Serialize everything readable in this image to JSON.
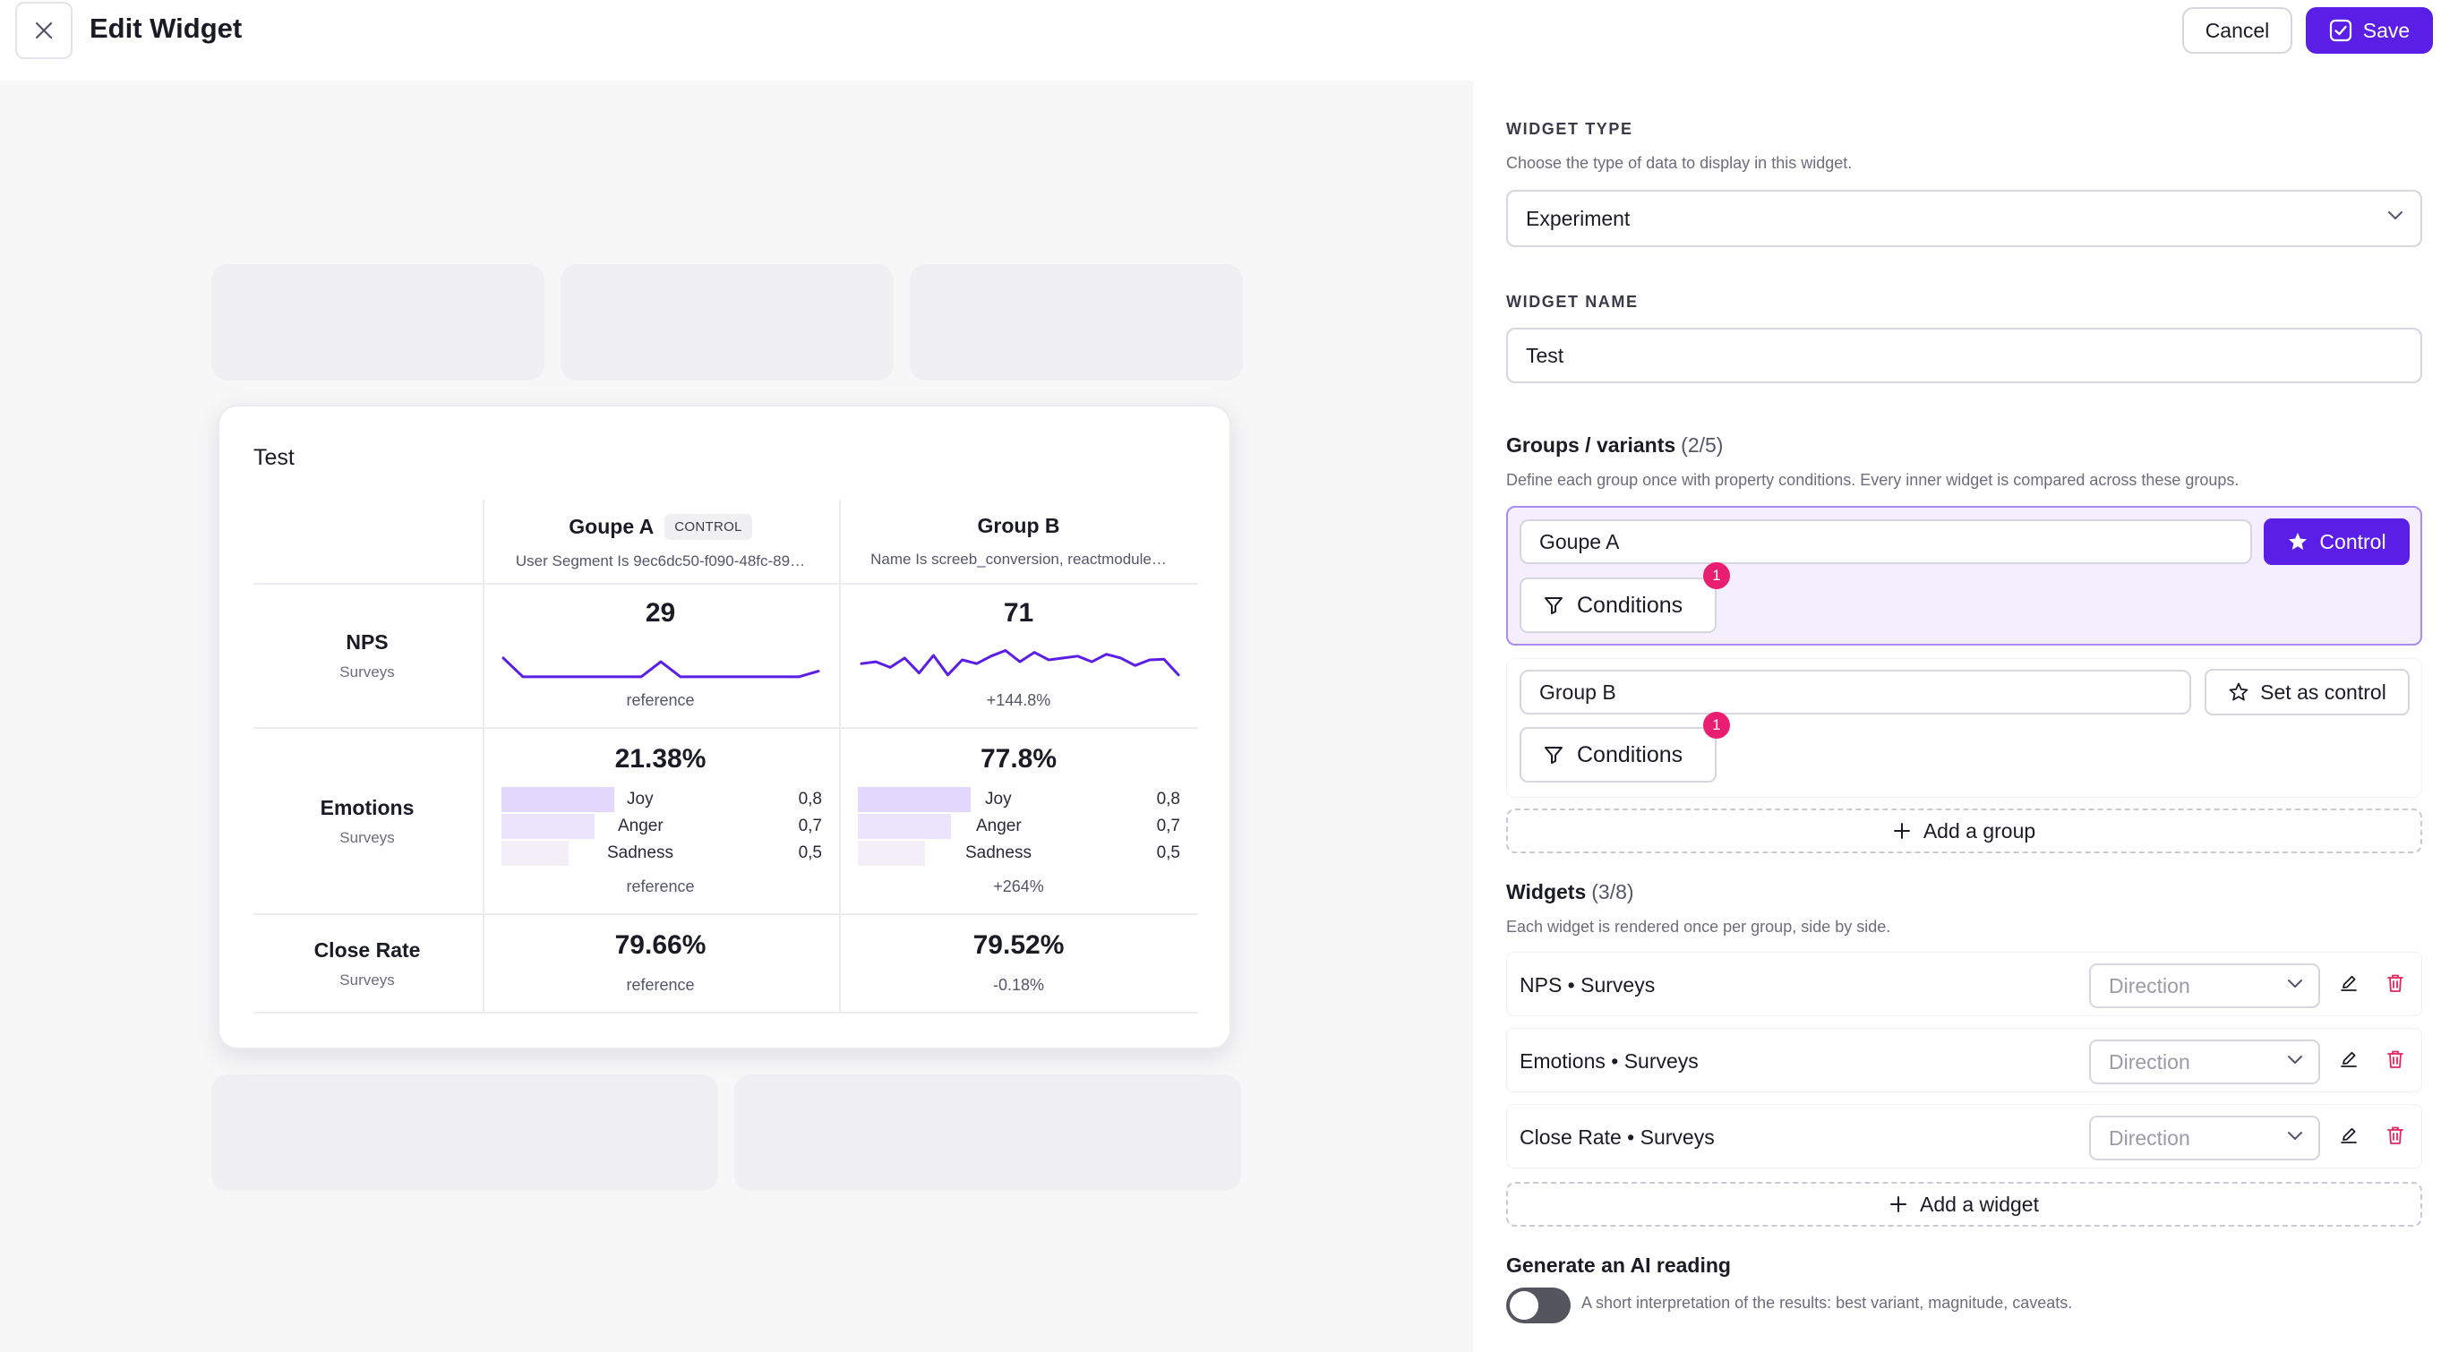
{
  "header": {
    "title": "Edit Widget",
    "cancel_label": "Cancel",
    "save_label": "Save"
  },
  "preview": {
    "card_title": "Test",
    "groups": [
      {
        "name": "Goupe A",
        "badge": "CONTROL",
        "condition": "User Segment Is 9ec6dc50-f090-48fc-89…"
      },
      {
        "name": "Group B",
        "badge": "",
        "condition": "Name Is screeb_conversion, reactmodule…"
      }
    ],
    "rows": [
      {
        "title": "NPS",
        "subtitle": "Surveys",
        "cells": [
          {
            "value": "29",
            "foot": "reference",
            "sparkline": [
              0.55,
              0.05,
              0.05,
              0.05,
              0.05,
              0.05,
              0.05,
              0.05,
              0.45,
              0.05,
              0.05,
              0.05,
              0.05,
              0.05,
              0.05,
              0.05,
              0.2
            ]
          },
          {
            "value": "71",
            "foot": "+144.8%",
            "sparkline": [
              0.4,
              0.45,
              0.3,
              0.55,
              0.15,
              0.62,
              0.1,
              0.5,
              0.4,
              0.6,
              0.75,
              0.45,
              0.7,
              0.5,
              0.55,
              0.6,
              0.45,
              0.65,
              0.55,
              0.35,
              0.5,
              0.52,
              0.1
            ]
          }
        ]
      },
      {
        "title": "Emotions",
        "subtitle": "Surveys",
        "cells": [
          {
            "value": "21.38%",
            "foot": "reference",
            "emotions": [
              {
                "label": "Joy",
                "value": "0,8"
              },
              {
                "label": "Anger",
                "value": "0,7"
              },
              {
                "label": "Sadness",
                "value": "0,5"
              }
            ]
          },
          {
            "value": "77.8%",
            "foot": "+264%",
            "emotions": [
              {
                "label": "Joy",
                "value": "0,8"
              },
              {
                "label": "Anger",
                "value": "0,7"
              },
              {
                "label": "Sadness",
                "value": "0,5"
              }
            ]
          }
        ]
      },
      {
        "title": "Close Rate",
        "subtitle": "Surveys",
        "cells": [
          {
            "value": "79.66%",
            "foot": "reference"
          },
          {
            "value": "79.52%",
            "foot": "-0.18%"
          }
        ]
      }
    ]
  },
  "panel": {
    "widget_type": {
      "label": "WIDGET TYPE",
      "description": "Choose the type of data to display in this widget.",
      "value": "Experiment"
    },
    "widget_name": {
      "label": "WIDGET NAME",
      "value": "Test"
    },
    "groups": {
      "title": "Groups / variants",
      "count": "(2/5)",
      "description": "Define each group once with property conditions. Every inner widget is compared across these groups.",
      "items": [
        {
          "name": "Goupe A",
          "action_label": "Control",
          "conditions_label": "Conditions",
          "conditions_count": "1"
        },
        {
          "name": "Group B",
          "action_label": "Set as control",
          "conditions_label": "Conditions",
          "conditions_count": "1"
        }
      ],
      "add_label": "Add a group"
    },
    "widgets": {
      "title": "Widgets",
      "count": "(3/8)",
      "description": "Each widget is rendered once per group, side by side.",
      "items": [
        {
          "label": "NPS • Surveys",
          "direction_placeholder": "Direction"
        },
        {
          "label": "Emotions • Surveys",
          "direction_placeholder": "Direction"
        },
        {
          "label": "Close Rate • Surveys",
          "direction_placeholder": "Direction"
        }
      ],
      "add_label": "Add a widget"
    },
    "ai_reading": {
      "title": "Generate an AI reading",
      "description": "A short interpretation of the results: best variant, magnitude, caveats.",
      "enabled": false
    }
  },
  "colors": {
    "accent": "#5b1ee6",
    "accent_soft": "#f4eefe",
    "badge_pink": "#e91e73",
    "delete_red": "#e5245d",
    "sparkline": "#5b1ee6",
    "emotion_bars": [
      "#e3d8fb",
      "#ebe4fb",
      "#f3eff8"
    ]
  }
}
